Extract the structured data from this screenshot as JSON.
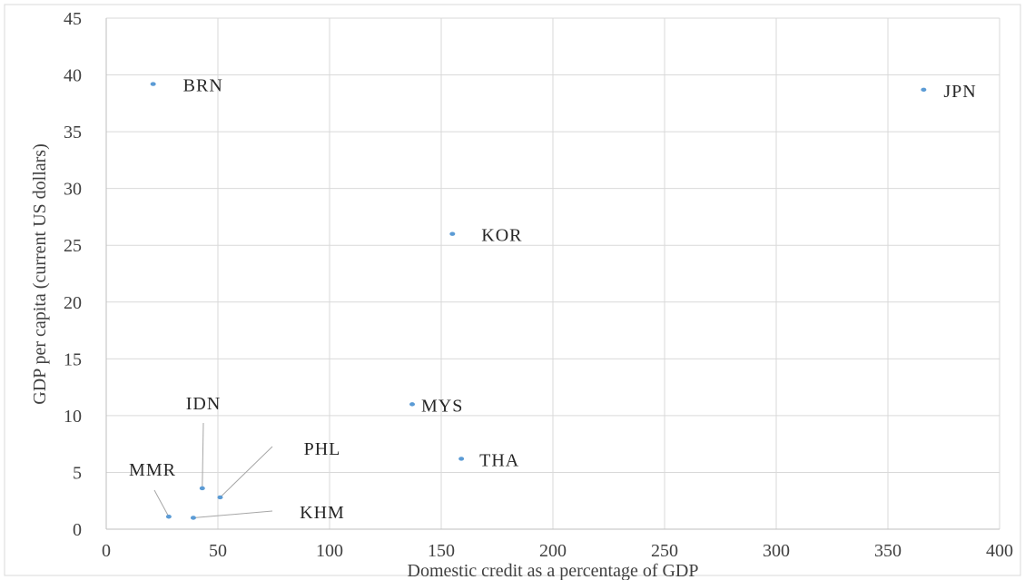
{
  "chart_data": {
    "type": "scatter",
    "title": "",
    "xlabel": "Domestic credit as a percentage of GDP",
    "ylabel": "GDP per capita (current US dollars)",
    "xlim": [
      0,
      400
    ],
    "ylim": [
      0,
      45
    ],
    "x_ticks": [
      0,
      50,
      100,
      150,
      200,
      250,
      300,
      350,
      400
    ],
    "y_ticks": [
      0,
      5,
      10,
      15,
      20,
      25,
      30,
      35,
      40,
      45
    ],
    "grid": true,
    "marker_color": "#5b9bd5",
    "points": [
      {
        "label": "BRN",
        "x": 21,
        "y": 39.2
      },
      {
        "label": "JPN",
        "x": 366,
        "y": 38.7
      },
      {
        "label": "KOR",
        "x": 155,
        "y": 26.0
      },
      {
        "label": "MYS",
        "x": 137,
        "y": 11.0
      },
      {
        "label": "THA",
        "x": 159,
        "y": 6.2
      },
      {
        "label": "IDN",
        "x": 43,
        "y": 3.6
      },
      {
        "label": "PHL",
        "x": 51,
        "y": 2.8
      },
      {
        "label": "MMR",
        "x": 28,
        "y": 1.1
      },
      {
        "label": "KHM",
        "x": 39,
        "y": 1.0
      }
    ]
  }
}
